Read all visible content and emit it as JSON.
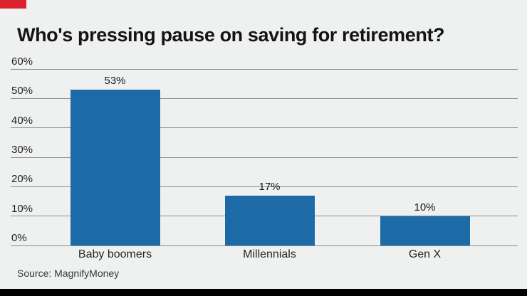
{
  "chart_data": {
    "type": "bar",
    "title": "Who's pressing pause on saving for retirement?",
    "categories": [
      "Baby boomers",
      "Millennials",
      "Gen X"
    ],
    "values": [
      53,
      17,
      10
    ],
    "value_labels": [
      "53%",
      "17%",
      "10%"
    ],
    "ytick_values": [
      60,
      50,
      40,
      30,
      20,
      10,
      0
    ],
    "ytick_labels": [
      "60%",
      "50%",
      "40%",
      "30%",
      "20%",
      "10%",
      "0%"
    ],
    "ylim": [
      0,
      60
    ],
    "grid": true,
    "legend": "none",
    "source": "Source: MagnifyMoney"
  },
  "colors": {
    "background": "#eff1f0",
    "bar": "#1d6ba6",
    "gridline": "#8d8f8e",
    "accent_red": "#d9222a",
    "footer_black": "#000000",
    "text": "#141414"
  }
}
